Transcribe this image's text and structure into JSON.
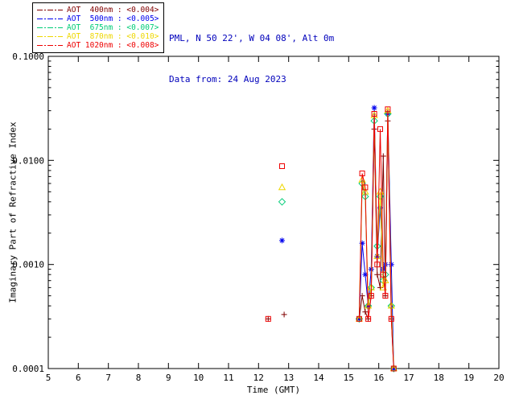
{
  "header": {
    "station_line": "PML, N 50 22', W 04 08', Alt 0m",
    "date_line": "Data from: 24 Aug 2023",
    "text_color": "#0000bb"
  },
  "legend": {
    "items": [
      {
        "label": "AOT  400nm : <0.004>",
        "color": "#800000"
      },
      {
        "label": "AOT  500nm : <0.005>",
        "color": "#0000ee"
      },
      {
        "label": "AOT  675nm : <0.007>",
        "color": "#00cc77"
      },
      {
        "label": "AOT  870nm : <0.010>",
        "color": "#eed700"
      },
      {
        "label": "AOT 1020nm : <0.008>",
        "color": "#ee0000"
      }
    ]
  },
  "chart_data": {
    "type": "line",
    "title": "",
    "xlabel": "Time (GMT)",
    "ylabel": "Imaginary Part of Refractive Index",
    "xlim": [
      5,
      20
    ],
    "ylim": [
      0.0001,
      0.1
    ],
    "yscale": "log",
    "x_ticks": [
      5,
      6,
      7,
      8,
      9,
      10,
      11,
      12,
      13,
      14,
      15,
      16,
      17,
      18,
      19,
      20
    ],
    "y_ticks": [
      {
        "value": 0.0001,
        "label": "0.0001"
      },
      {
        "value": 0.001,
        "label": "0.0010"
      },
      {
        "value": 0.01,
        "label": "0.0100"
      },
      {
        "value": 0.1,
        "label": "0.1000"
      }
    ],
    "series": [
      {
        "name": "AOT 400nm",
        "mean": "<0.004>",
        "color": "#800000",
        "marker": "plus",
        "isolated_points": [
          [
            12.32,
            0.0003
          ],
          [
            12.85,
            0.00033
          ]
        ],
        "line_points": [
          [
            15.35,
            0.0003
          ],
          [
            15.45,
            0.0005
          ],
          [
            15.55,
            0.00035
          ],
          [
            15.65,
            0.0003
          ],
          [
            15.75,
            0.0005
          ],
          [
            15.85,
            0.02
          ],
          [
            15.95,
            0.0008
          ],
          [
            16.05,
            0.0006
          ],
          [
            16.15,
            0.011
          ],
          [
            16.22,
            0.0005
          ],
          [
            16.3,
            0.024
          ],
          [
            16.42,
            0.0003
          ],
          [
            16.5,
            0.0001
          ]
        ]
      },
      {
        "name": "AOT 500nm",
        "mean": "<0.005>",
        "color": "#0000ee",
        "marker": "asterisk",
        "isolated_points": [
          [
            12.78,
            0.0017
          ]
        ],
        "line_points": [
          [
            15.35,
            0.0003
          ],
          [
            15.45,
            0.0016
          ],
          [
            15.55,
            0.0008
          ],
          [
            15.65,
            0.0004
          ],
          [
            15.75,
            0.0009
          ],
          [
            15.85,
            0.032
          ],
          [
            15.95,
            0.0012
          ],
          [
            16.05,
            0.0035
          ],
          [
            16.15,
            0.0009
          ],
          [
            16.22,
            0.001
          ],
          [
            16.3,
            0.028
          ],
          [
            16.42,
            0.001
          ],
          [
            16.5,
            0.0001
          ]
        ]
      },
      {
        "name": "AOT 675nm",
        "mean": "<0.007>",
        "color": "#00cc77",
        "marker": "diamond",
        "isolated_points": [
          [
            12.78,
            0.004
          ]
        ],
        "line_points": [
          [
            15.35,
            0.0003
          ],
          [
            15.45,
            0.006
          ],
          [
            15.55,
            0.0045
          ],
          [
            15.65,
            0.0004
          ],
          [
            15.75,
            0.0006
          ],
          [
            15.85,
            0.024
          ],
          [
            15.95,
            0.0015
          ],
          [
            16.05,
            0.0045
          ],
          [
            16.15,
            0.0007
          ],
          [
            16.22,
            0.0008
          ],
          [
            16.3,
            0.028
          ],
          [
            16.42,
            0.0004
          ],
          [
            16.5,
            0.0001
          ]
        ]
      },
      {
        "name": "AOT 870nm",
        "mean": "<0.010>",
        "color": "#eed700",
        "marker": "triangle",
        "isolated_points": [
          [
            12.78,
            0.0055
          ]
        ],
        "line_points": [
          [
            15.35,
            0.0003
          ],
          [
            15.45,
            0.0065
          ],
          [
            15.55,
            0.005
          ],
          [
            15.65,
            0.0004
          ],
          [
            15.75,
            0.0006
          ],
          [
            15.85,
            0.027
          ],
          [
            15.95,
            0.0012
          ],
          [
            16.05,
            0.005
          ],
          [
            16.15,
            0.0006
          ],
          [
            16.22,
            0.0007
          ],
          [
            16.3,
            0.03
          ],
          [
            16.42,
            0.0004
          ],
          [
            16.5,
            0.0001
          ]
        ]
      },
      {
        "name": "AOT 1020nm",
        "mean": "<0.008>",
        "color": "#ee0000",
        "marker": "square",
        "isolated_points": [
          [
            12.32,
            0.0003
          ],
          [
            12.78,
            0.0088
          ]
        ],
        "line_points": [
          [
            15.35,
            0.0003
          ],
          [
            15.45,
            0.0075
          ],
          [
            15.55,
            0.0055
          ],
          [
            15.65,
            0.0003
          ],
          [
            15.75,
            0.0005
          ],
          [
            15.85,
            0.028
          ],
          [
            15.95,
            0.001
          ],
          [
            16.05,
            0.02
          ],
          [
            16.15,
            0.0008
          ],
          [
            16.22,
            0.0005
          ],
          [
            16.3,
            0.031
          ],
          [
            16.42,
            0.0003
          ],
          [
            16.5,
            0.0001
          ]
        ]
      }
    ]
  }
}
